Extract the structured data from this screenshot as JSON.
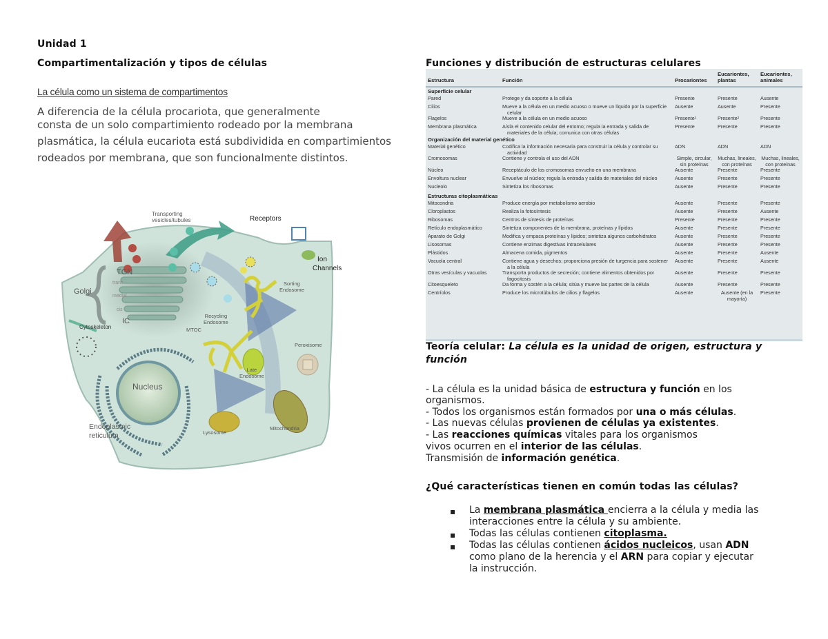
{
  "left": {
    "unit_title": "Unidad 1",
    "section_title": "Compartimentalización y tipos de células",
    "subheading": "La célula como un sistema de compartimentos",
    "paragraph_lines": [
      "A diferencia de la célula procariota, que generalmente",
      "consta de un solo compartimiento rodeado por la membrana",
      "plasmática, la célula eucariota está subdividida en compartimientos",
      "rodeados por membrana, que son funcionalmente distintos."
    ],
    "diagram_labels": {
      "transporting": "Transporting",
      "vesicles": "vesicles/tubules",
      "receptors": "Receptors",
      "ion": "Ion",
      "channels": "Channels",
      "tgn": "TGN",
      "golgi": "Golgi",
      "trans": "trans",
      "medial": "medial",
      "cis": "cis",
      "ic": "IC",
      "cytoskeleton": "Cytoskeleton",
      "sorting": "Sorting",
      "sorting2": "Endosome",
      "recycling": "Recycling",
      "recycling2": "Endosome",
      "mtoc": "MTOC",
      "peroxisome": "Peroxisome",
      "nucleus": "Nucleus",
      "late": "Late",
      "late2": "Endosome",
      "er": "Endoplasmic",
      "er2": "reticulum",
      "lysosome": "Lysosome",
      "mitochondria": "Mitochondria"
    }
  },
  "right": {
    "table_title": "Funciones y distribución de estructuras celulares",
    "table": {
      "headers": [
        "Estructura",
        "Función",
        "Procariontes",
        "Eucariontes, plantas",
        "Eucariontes, animales"
      ],
      "sections": [
        {
          "title": "Superficie celular",
          "rows": [
            [
              "Pared",
              "Protege y da soporte a la célula",
              "Presente",
              "Presente",
              "Ausente"
            ],
            [
              "Cilios",
              "Mueve a la célula en un medio acuoso o mueve un líquido por la superficie celular",
              "Ausente",
              "Ausente",
              "Presente"
            ],
            [
              "Flagelos",
              "Mueve a la célula en un medio acuoso",
              "Presente¹",
              "Presente²",
              "Presente"
            ],
            [
              "Membrana plasmática",
              "Aísla el contenido celular del entorno; regula la entrada y salida de materiales de la célula; comunica con otras células",
              "Presente",
              "Presente",
              "Presente"
            ]
          ]
        },
        {
          "title": "Organización del material genético",
          "rows": [
            [
              "Material genético",
              "Codifica la información necesaria para construir la célula y controlar su actividad",
              "ADN",
              "ADN",
              "ADN"
            ],
            [
              "Cromosomas",
              "Contiene y controla el uso del ADN",
              "Simple, circular, sin proteínas",
              "Muchas, lineales, con proteínas",
              "Muchas, lineales, con proteínas"
            ],
            [
              "Núcleo",
              "Receptáculo de los cromosomas envuelto en una membrana",
              "Ausente",
              "Presente",
              "Presente"
            ],
            [
              "Envoltura nuclear",
              "Envuelve al núcleo; regula la entrada y salida de materiales del núcleo",
              "Ausente",
              "Presente",
              "Presente"
            ],
            [
              "Nucleolo",
              "Sintetiza los ribosomas",
              "Ausente",
              "Presente",
              "Presente"
            ]
          ]
        },
        {
          "title": "Estructuras citoplasmáticas",
          "rows": [
            [
              "Mitocondria",
              "Produce energía por metabolismo aerobio",
              "Ausente",
              "Presente",
              "Presente"
            ],
            [
              "Cloroplastos",
              "Realiza la fotosíntesis",
              "Ausente",
              "Presente",
              "Ausente"
            ],
            [
              "Ribosomas",
              "Centros de síntesis de proteínas",
              "Presente",
              "Presente",
              "Presente"
            ],
            [
              "Retículo endoplasmático",
              "Sintetiza componentes de la membrana, proteínas y lípidos",
              "Ausente",
              "Presente",
              "Presente"
            ],
            [
              "Aparato de Golgi",
              "Modifica y empaca proteínas y lípidos; sintetiza algunos carbohidratos",
              "Ausente",
              "Presente",
              "Presente"
            ],
            [
              "Lisosomas",
              "Contiene enzimas digestivas intracelulares",
              "Ausente",
              "Presente",
              "Presente"
            ],
            [
              "Plástidos",
              "Almacena comida, pigmentos",
              "Ausente",
              "Presente",
              "Ausente"
            ],
            [
              "Vacuola central",
              "Contiene agua y desechos; proporciona presión de turgencia para sostener a la célula",
              "Ausente",
              "Presente",
              "Ausente"
            ],
            [
              "Otras vesículas y vacuolas",
              "Transporta productos de secreción; contiene alimentos obtenidos por fagocitosis",
              "Ausente",
              "Presente",
              "Presente"
            ],
            [
              "Citoesqueleto",
              "Da forma y sostén a la célula; sitúa y mueve las partes de la célula",
              "Ausente",
              "Presente",
              "Presente"
            ],
            [
              "Centríolos",
              "Produce los microtúbulos de cilios y flagelos",
              "Ausente",
              "Ausente (en la mayoría)",
              "Presente"
            ]
          ]
        }
      ]
    },
    "theory": {
      "label": "Teoría celular: ",
      "italic_1": "La célula es la unidad de origen, estructura y",
      "italic_2": "función"
    },
    "points": {
      "l1a": "- La célula es la unidad básica de ",
      "l1b": "estructura y función",
      "l1c": " en los",
      "l2": "organismos.",
      "l3a": "- Todos los organismos están formados por ",
      "l3b": "una o más células",
      "l3c": ".",
      "l4a": "- Las nuevas células ",
      "l4b": "provienen de células ya existentes",
      "l4c": ".",
      "l5a": "- Las ",
      "l5b": "reacciones químicas",
      "l5c": " vitales para los organismos",
      "l6a": "vivos ocurren en el ",
      "l6b": "interior de las células",
      "l6c": ".",
      "l7a": "Transmisión de ",
      "l7b": "información genética",
      "l7c": "."
    },
    "question": "¿Qué características tienen en común todas las células?",
    "bullets": {
      "b1a": "La ",
      "b1b": "membrana plasmática ",
      "b1c": "encierra a la célula y media las",
      "b1d": "interacciones entre la célula y su ambiente.",
      "b2a": "Todas las células contienen ",
      "b2b": "citoplasma.",
      "b3a": "Todas las células contienen ",
      "b3b": "ácidos nucleicos",
      "b3c": ", usan ",
      "b3d": "ADN",
      "b3e": "como plano de la herencia y el ",
      "b3f": "ARN",
      "b3g": " para copiar y ejecutar",
      "b3h": "la instrucción.",
      "marker": "▪"
    }
  },
  "colors": {
    "table_bg": "#e4eaec",
    "cell_fill": "#cfe3da",
    "text": "#222222"
  }
}
